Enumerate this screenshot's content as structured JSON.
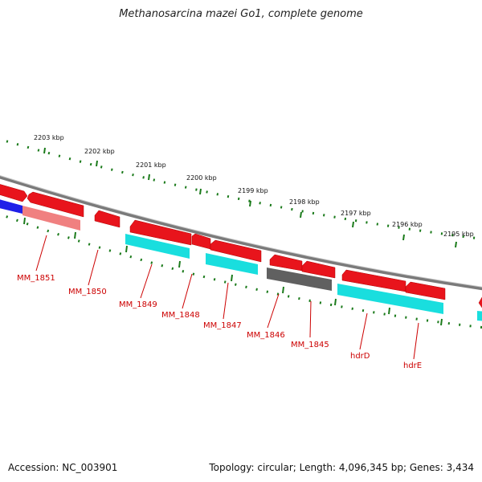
{
  "title": "Methanosarcina mazei Go1, complete genome",
  "footer": {
    "accession": "Accession: NC_003901",
    "summary": "Topology: circular; Length: 4,096,345 bp; Genes: 3,434"
  },
  "colors": {
    "forward_gene": "#e8141c",
    "cds": "#19dede",
    "reverse_gene": "#f08080",
    "pseudo": "#606060",
    "other": "#1f1fe8",
    "ruler": "#1a7a1a",
    "label": "#cc0000",
    "backbone": "#7a7a7a"
  },
  "ruler_labels": [
    "2203 kbp",
    "2202 kbp",
    "2201 kbp",
    "2200 kbp",
    "2199 kbp",
    "2198 kbp",
    "2197 kbp",
    "2196 kbp",
    "2195 kbp"
  ],
  "gene_labels": [
    "MM_1851",
    "MM_1850",
    "MM_1849",
    "MM_1848",
    "MM_1847",
    "MM_1846",
    "MM_1845",
    "hdrD",
    "hdrE"
  ]
}
